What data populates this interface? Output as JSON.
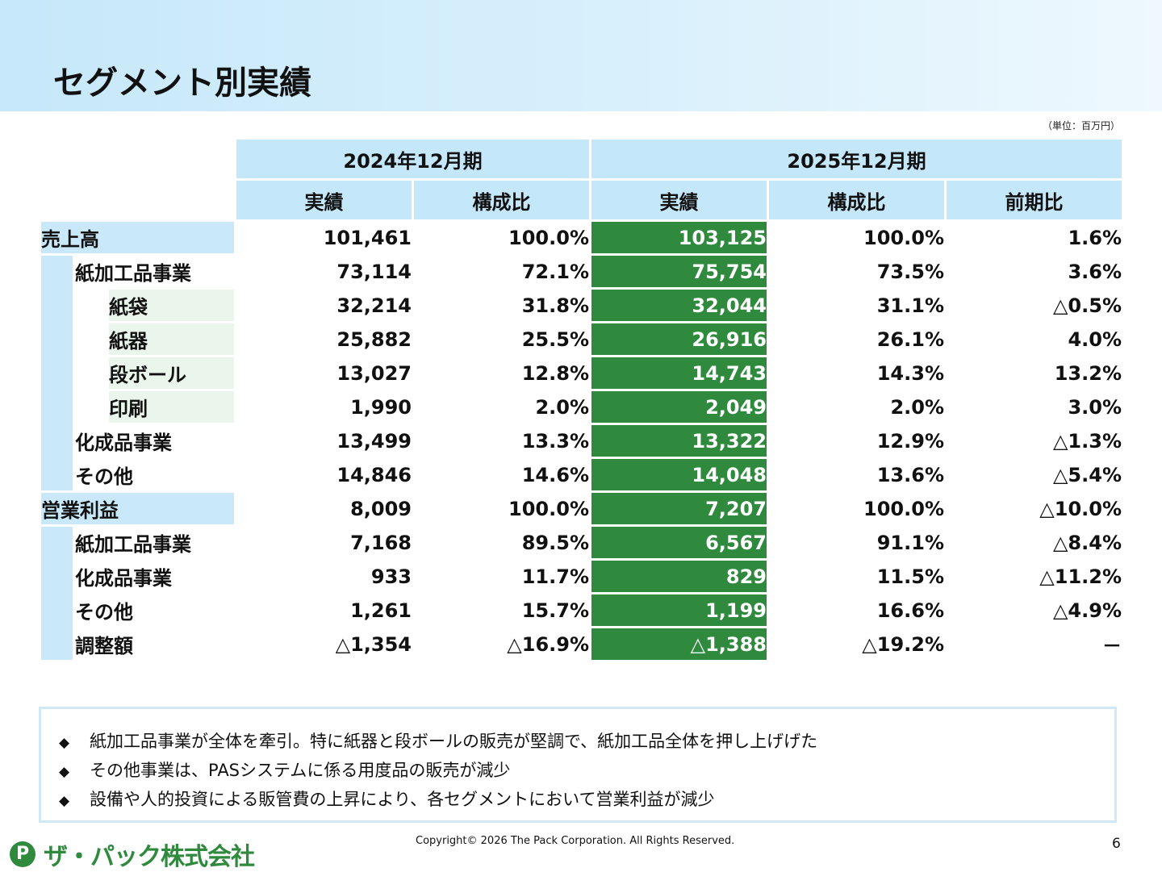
{
  "title": "セグメント別実績",
  "unit": "（単位：百万円）",
  "table": {
    "period_2024": "2024年12月期",
    "period_2025": "2025年12月期",
    "col_actual": "実績",
    "col_ratio": "構成比",
    "col_yoy": "前期比",
    "rows": [
      {
        "label": "売上高",
        "v2024": "101,461",
        "r2024": "100.0%",
        "v2025": "103,125",
        "r2025": "100.0%",
        "yoy": "1.6%"
      },
      {
        "label": "紙加工品事業",
        "v2024": "73,114",
        "r2024": "72.1%",
        "v2025": "75,754",
        "r2025": "73.5%",
        "yoy": "3.6%"
      },
      {
        "label": "紙袋",
        "v2024": "32,214",
        "r2024": "31.8%",
        "v2025": "32,044",
        "r2025": "31.1%",
        "yoy": "△0.5%"
      },
      {
        "label": "紙器",
        "v2024": "25,882",
        "r2024": "25.5%",
        "v2025": "26,916",
        "r2025": "26.1%",
        "yoy": "4.0%"
      },
      {
        "label": "段ボール",
        "v2024": "13,027",
        "r2024": "12.8%",
        "v2025": "14,743",
        "r2025": "14.3%",
        "yoy": "13.2%"
      },
      {
        "label": "印刷",
        "v2024": "1,990",
        "r2024": "2.0%",
        "v2025": "2,049",
        "r2025": "2.0%",
        "yoy": "3.0%"
      },
      {
        "label": "化成品事業",
        "v2024": "13,499",
        "r2024": "13.3%",
        "v2025": "13,322",
        "r2025": "12.9%",
        "yoy": "△1.3%"
      },
      {
        "label": "その他",
        "v2024": "14,846",
        "r2024": "14.6%",
        "v2025": "14,048",
        "r2025": "13.6%",
        "yoy": "△5.4%"
      },
      {
        "label": "営業利益",
        "v2024": "8,009",
        "r2024": "100.0%",
        "v2025": "7,207",
        "r2025": "100.0%",
        "yoy": "△10.0%"
      },
      {
        "label": "紙加工品事業",
        "v2024": "7,168",
        "r2024": "89.5%",
        "v2025": "6,567",
        "r2025": "91.1%",
        "yoy": "△8.4%"
      },
      {
        "label": "化成品事業",
        "v2024": "933",
        "r2024": "11.7%",
        "v2025": "829",
        "r2025": "11.5%",
        "yoy": "△11.2%"
      },
      {
        "label": "その他",
        "v2024": "1,261",
        "r2024": "15.7%",
        "v2025": "1,199",
        "r2025": "16.6%",
        "yoy": "△4.9%"
      },
      {
        "label": "調整額",
        "v2024": "△1,354",
        "r2024": "△16.9%",
        "v2025": "△1,388",
        "r2025": "△19.2%",
        "yoy": "－"
      }
    ]
  },
  "notes": {
    "bullet": "◆",
    "items": [
      "紙加工品事業が全体を牽引。特に紙器と段ボールの販売が堅調で、紙加工品全体を押し上げげた",
      "その他事業は、PASシステムに係る用度品の販売が減少",
      "設備や人的投資による販管費の上昇により、各セグメントにおいて営業利益が減少"
    ]
  },
  "footer": {
    "logo_mark": "P",
    "logo_text": "ザ・パック株式会社",
    "copyright": "Copyright© 2026 The Pack Corporation. All Rights Reserved.",
    "page_number": "6"
  },
  "colors": {
    "highlight_green": "#2f8a3e",
    "header_blue": "#c5e7fa"
  }
}
